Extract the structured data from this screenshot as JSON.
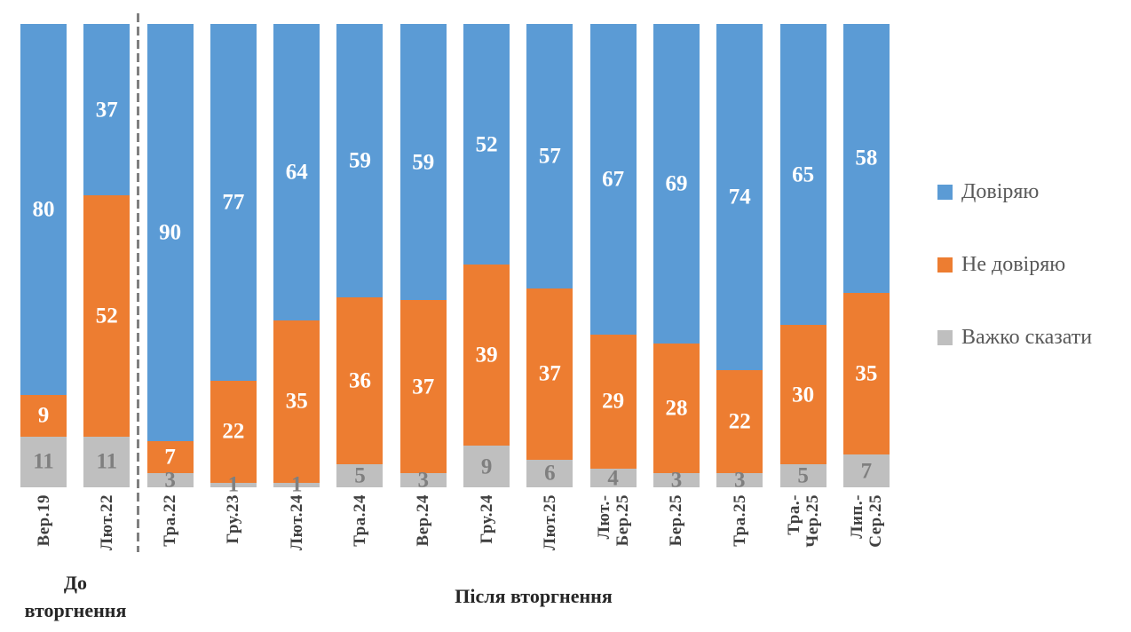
{
  "chart_data": {
    "type": "bar",
    "stacked": "100%",
    "title": "",
    "xlabel": "",
    "ylabel": "",
    "ylim": [
      0,
      100
    ],
    "grid": false,
    "legend_position": "right",
    "categories": [
      "Вер.19",
      "Лют.22",
      "Тра.22",
      "Гру.23",
      "Лют.24",
      "Тра.24",
      "Вер.24",
      "Гру.24",
      "Лют.25",
      "Лют.-\nБер.25",
      "Бер.25",
      "Тра.25",
      "Тра.-\nЧер.25",
      "Лип.-\nСер.25"
    ],
    "series": [
      {
        "name": "Довіряю",
        "color": "#5B9BD5",
        "label_color": "#FFFFFF",
        "values": [
          80,
          37,
          90,
          77,
          64,
          59,
          59,
          52,
          57,
          67,
          69,
          74,
          65,
          58
        ]
      },
      {
        "name": "Не довіряю",
        "color": "#ED7D31",
        "label_color": "#FFFFFF",
        "values": [
          9,
          52,
          7,
          22,
          35,
          36,
          37,
          39,
          37,
          29,
          28,
          22,
          30,
          35
        ]
      },
      {
        "name": "Важко сказати",
        "color": "#BFBFBF",
        "label_color": "#7F7F7F",
        "values": [
          11,
          11,
          3,
          1,
          1,
          5,
          3,
          9,
          6,
          4,
          3,
          3,
          5,
          7
        ]
      }
    ],
    "group_labels": {
      "before": "До вторгнення",
      "after": "Після вторгнення"
    },
    "divider_after_category": "Лют.22",
    "divider_color": "#7F7F7F",
    "axis_label_color": "#3F3F3F",
    "legend_text_color": "#595959",
    "background_color": "#FFFFFF"
  }
}
